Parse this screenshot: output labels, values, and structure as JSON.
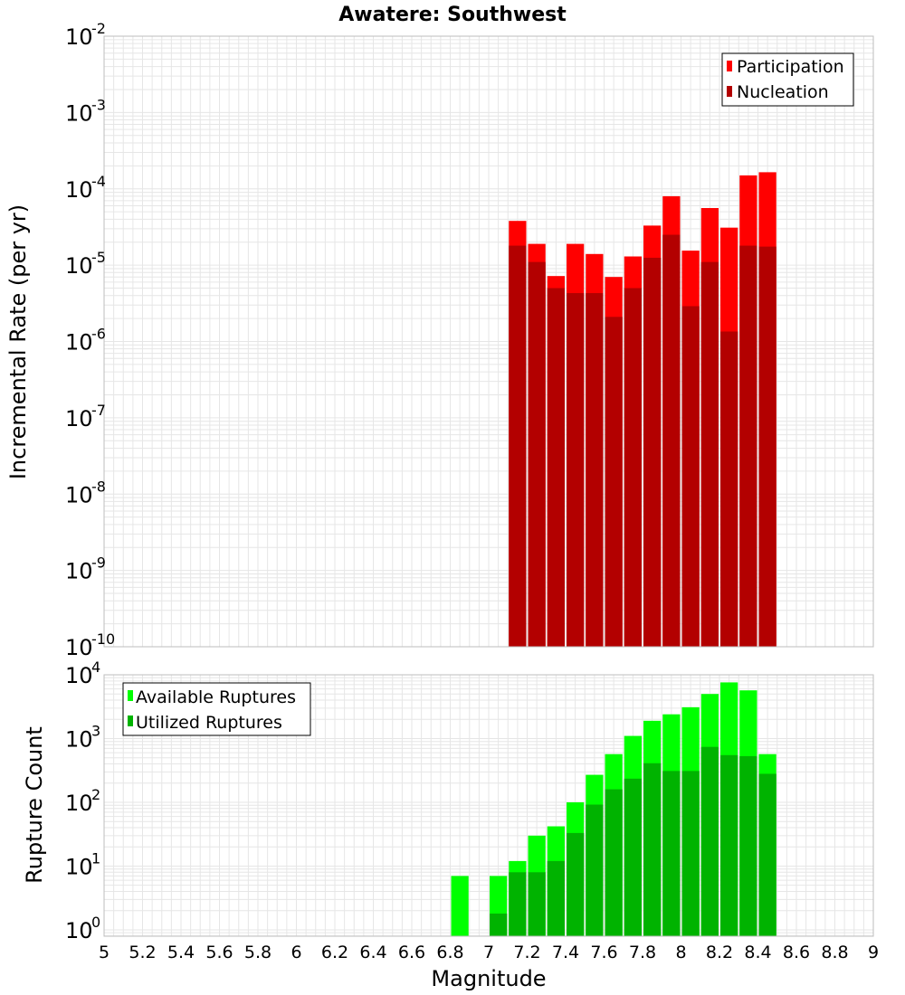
{
  "chart_data": [
    {
      "type": "bar",
      "title": "Awatere: Southwest",
      "ylabel": "Incremental Rate (per yr)",
      "yscale": "log",
      "ylim_exp": [
        -10,
        -2
      ],
      "xlim": [
        5,
        9
      ],
      "legend_position": "top-right",
      "series": [
        {
          "name": "Participation",
          "color": "#ff0000",
          "x": [
            7.15,
            7.25,
            7.35,
            7.45,
            7.55,
            7.65,
            7.75,
            7.85,
            7.95,
            8.05,
            8.15,
            8.25,
            8.35,
            8.45
          ],
          "values": [
            3.8e-05,
            1.9e-05,
            7.2e-06,
            1.9e-05,
            1.4e-05,
            7e-06,
            1.3e-05,
            3.3e-05,
            8e-05,
            1.55e-05,
            5.6e-05,
            3.1e-05,
            0.00015,
            0.000165
          ]
        },
        {
          "name": "Nucleation",
          "color": "#b30000",
          "x": [
            7.15,
            7.25,
            7.35,
            7.45,
            7.55,
            7.65,
            7.75,
            7.85,
            7.95,
            8.05,
            8.15,
            8.25,
            8.35,
            8.45
          ],
          "values": [
            1.8e-05,
            1.1e-05,
            5e-06,
            4.3e-06,
            4.3e-06,
            2.1e-06,
            5e-06,
            1.25e-05,
            2.5e-05,
            2.9e-06,
            1.1e-05,
            1.35e-06,
            1.8e-05,
            1.75e-05
          ]
        }
      ]
    },
    {
      "type": "bar",
      "xlabel": "Magnitude",
      "ylabel": "Rupture Count",
      "yscale": "log",
      "ylim_exp": [
        -0.1,
        4
      ],
      "xlim": [
        5,
        9
      ],
      "xticks": [
        "5",
        "5.2",
        "5.4",
        "5.6",
        "5.8",
        "6",
        "6.2",
        "6.4",
        "6.6",
        "6.8",
        "7",
        "7.2",
        "7.4",
        "7.6",
        "7.8",
        "8",
        "8.2",
        "8.4",
        "8.6",
        "8.8",
        "9"
      ],
      "legend_position": "top-left",
      "series": [
        {
          "name": "Available Ruptures",
          "color": "#00ff00",
          "x": [
            6.85,
            7.05,
            7.15,
            7.25,
            7.35,
            7.45,
            7.55,
            7.65,
            7.75,
            7.85,
            7.95,
            8.05,
            8.15,
            8.25,
            8.35,
            8.45
          ],
          "values": [
            7,
            7,
            12,
            30,
            42,
            100,
            270,
            570,
            1100,
            1900,
            2400,
            3100,
            5000,
            7600,
            5700,
            570
          ]
        },
        {
          "name": "Utilized Ruptures",
          "color": "#00b300",
          "x": [
            6.85,
            7.05,
            7.15,
            7.25,
            7.35,
            7.45,
            7.55,
            7.65,
            7.75,
            7.85,
            7.95,
            8.05,
            8.15,
            8.25,
            8.35,
            8.45
          ],
          "values": [
            0,
            1.8,
            8,
            8,
            12,
            33,
            92,
            160,
            235,
            410,
            310,
            310,
            740,
            550,
            530,
            280
          ]
        }
      ]
    }
  ]
}
